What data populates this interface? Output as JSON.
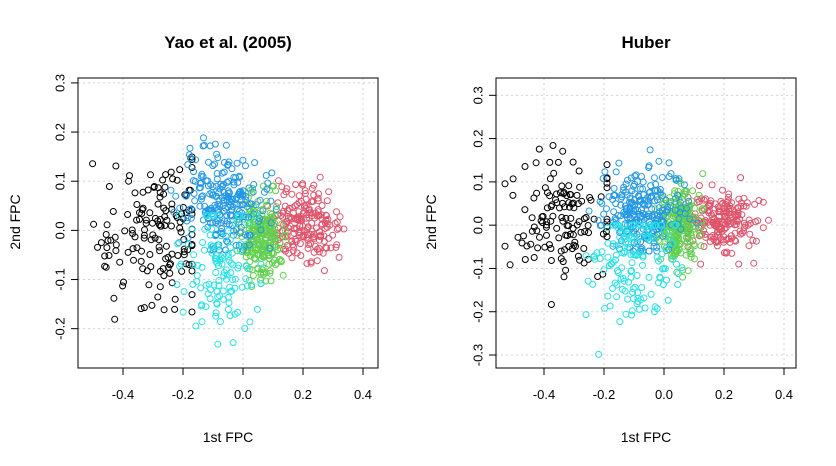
{
  "colors": {
    "cluster1": "#000000",
    "cluster2": "#DF536B",
    "cluster3": "#61D04F",
    "cluster4": "#2297E6",
    "cluster5": "#28E2E5",
    "grid": "#D3D3D3"
  },
  "chart_data": [
    {
      "type": "scatter",
      "title": "Yao et al. (2005)",
      "xlabel": "1st FPC",
      "ylabel": "2nd FPC",
      "xlim": [
        -0.55,
        0.45
      ],
      "ylim": [
        -0.28,
        0.31
      ],
      "xticks": [
        -0.4,
        -0.2,
        0.0,
        0.2,
        0.4
      ],
      "xtick_labels": [
        "-0.4",
        "-0.2",
        "0.0",
        "0.2",
        "0.4"
      ],
      "yticks": [
        -0.2,
        -0.1,
        0.0,
        0.1,
        0.2,
        0.3
      ],
      "ytick_labels": [
        "-0.2",
        "-0.1",
        "0.0",
        "0.1",
        "0.2",
        "0.3"
      ],
      "grid": true,
      "marker": "open-circle",
      "clusters": [
        {
          "color": "#000000",
          "cx": -0.3,
          "cy": 0.0,
          "sx": 0.09,
          "sy": 0.07,
          "n": 150,
          "x_range": [
            -0.52,
            -0.17
          ],
          "y_range": [
            -0.21,
            0.17
          ]
        },
        {
          "color": "#DF536B",
          "cx": 0.2,
          "cy": 0.01,
          "sx": 0.06,
          "sy": 0.035,
          "n": 200,
          "x_range": [
            0.08,
            0.43
          ],
          "y_range": [
            -0.09,
            0.12
          ]
        },
        {
          "color": "#61D04F",
          "cx": 0.06,
          "cy": -0.01,
          "sx": 0.035,
          "sy": 0.04,
          "n": 230,
          "x_range": [
            -0.02,
            0.16
          ],
          "y_range": [
            -0.15,
            0.09
          ]
        },
        {
          "color": "#2297E6",
          "cx": -0.06,
          "cy": 0.06,
          "sx": 0.07,
          "sy": 0.05,
          "n": 230,
          "x_range": [
            -0.24,
            0.12
          ],
          "y_range": [
            -0.04,
            0.3
          ]
        },
        {
          "color": "#28E2E5",
          "cx": -0.08,
          "cy": -0.08,
          "sx": 0.07,
          "sy": 0.06,
          "n": 120,
          "x_range": [
            -0.22,
            0.06
          ],
          "y_range": [
            -0.27,
            0.03
          ]
        }
      ]
    },
    {
      "type": "scatter",
      "title": "Huber",
      "xlabel": "1st FPC",
      "ylabel": "2nd FPC",
      "xlim": [
        -0.56,
        0.44
      ],
      "ylim": [
        -0.33,
        0.34
      ],
      "xticks": [
        -0.4,
        -0.2,
        0.0,
        0.2,
        0.4
      ],
      "xtick_labels": [
        "-0.4",
        "-0.2",
        "0.0",
        "0.2",
        "0.4"
      ],
      "yticks": [
        -0.3,
        -0.2,
        -0.1,
        0.0,
        0.1,
        0.2,
        0.3
      ],
      "ytick_labels": [
        "-0.3",
        "-0.2",
        "-0.1",
        "0.0",
        "0.1",
        "0.2",
        "0.3"
      ],
      "grid": true,
      "marker": "open-circle",
      "clusters": [
        {
          "color": "#000000",
          "cx": -0.33,
          "cy": 0.01,
          "sx": 0.08,
          "sy": 0.08,
          "n": 130,
          "x_range": [
            -0.53,
            -0.19
          ],
          "y_range": [
            -0.23,
            0.23
          ]
        },
        {
          "color": "#DF536B",
          "cx": 0.19,
          "cy": 0.01,
          "sx": 0.06,
          "sy": 0.035,
          "n": 200,
          "x_range": [
            0.08,
            0.42
          ],
          "y_range": [
            -0.09,
            0.11
          ]
        },
        {
          "color": "#61D04F",
          "cx": 0.05,
          "cy": 0.0,
          "sx": 0.035,
          "sy": 0.045,
          "n": 240,
          "x_range": [
            -0.03,
            0.13
          ],
          "y_range": [
            -0.12,
            0.14
          ]
        },
        {
          "color": "#2297E6",
          "cx": -0.07,
          "cy": 0.03,
          "sx": 0.07,
          "sy": 0.05,
          "n": 240,
          "x_range": [
            -0.25,
            0.11
          ],
          "y_range": [
            -0.06,
            0.32
          ]
        },
        {
          "color": "#28E2E5",
          "cx": -0.1,
          "cy": -0.1,
          "sx": 0.07,
          "sy": 0.07,
          "n": 140,
          "x_range": [
            -0.26,
            0.06
          ],
          "y_range": [
            -0.31,
            0.0
          ]
        }
      ]
    }
  ]
}
